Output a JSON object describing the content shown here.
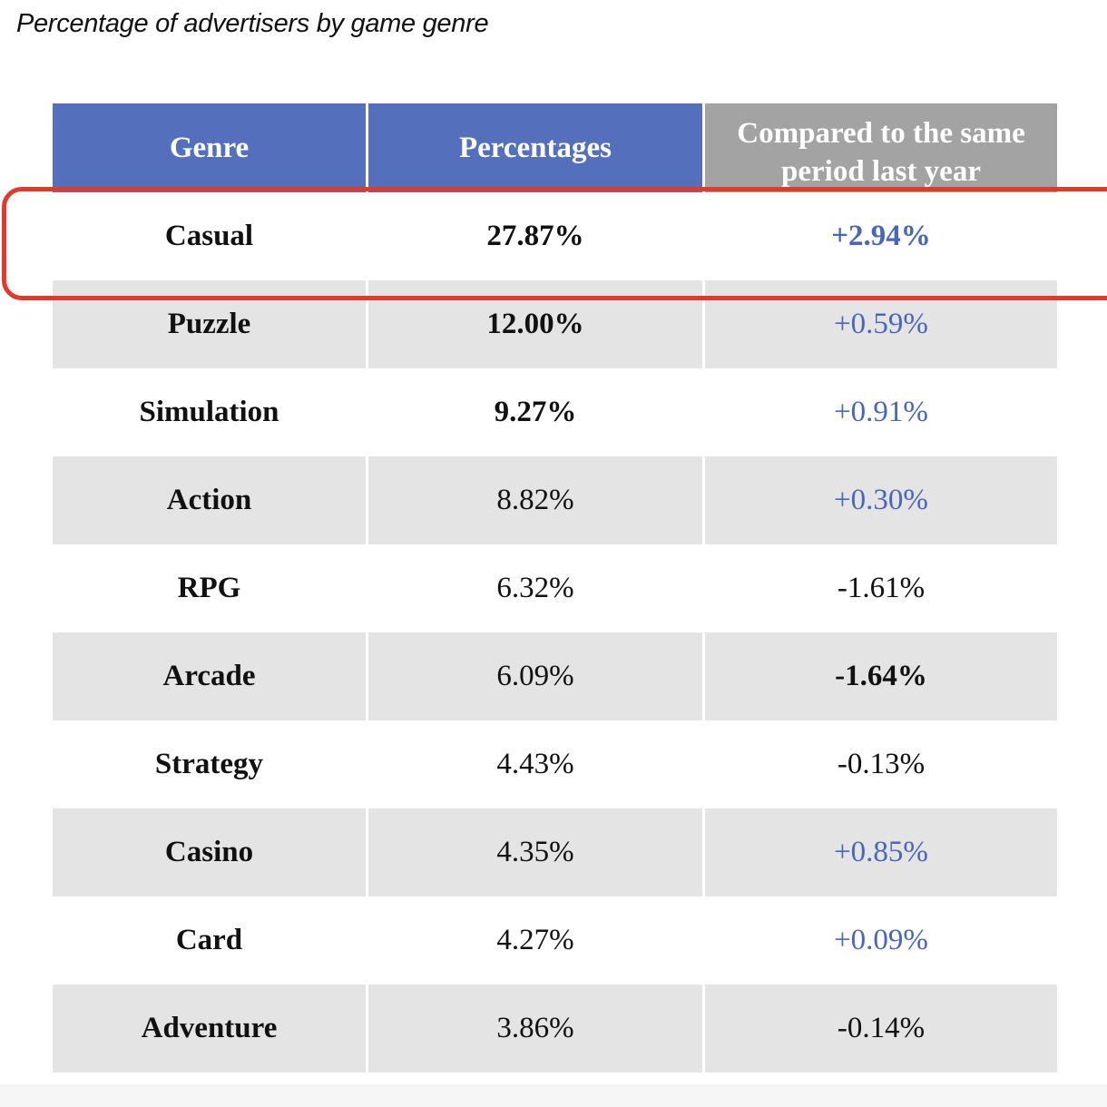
{
  "title": "Percentage of advertisers by game genre",
  "table": {
    "headers": [
      "Genre",
      "Percentages",
      "Compared to the same period last year"
    ],
    "rows": [
      {
        "genre": "Casual",
        "pct": "27.87%",
        "change": "+2.94%"
      },
      {
        "genre": "Puzzle",
        "pct": "12.00%",
        "change": "+0.59%"
      },
      {
        "genre": "Simulation",
        "pct": "9.27%",
        "change": "+0.91%"
      },
      {
        "genre": "Action",
        "pct": "8.82%",
        "change": "+0.30%"
      },
      {
        "genre": "RPG",
        "pct": "6.32%",
        "change": "-1.61%"
      },
      {
        "genre": "Arcade",
        "pct": "6.09%",
        "change": "-1.64%"
      },
      {
        "genre": "Strategy",
        "pct": "4.43%",
        "change": "-0.13%"
      },
      {
        "genre": "Casino",
        "pct": "4.35%",
        "change": "+0.85%"
      },
      {
        "genre": "Card",
        "pct": "4.27%",
        "change": "+0.09%"
      },
      {
        "genre": "Adventure",
        "pct": "3.86%",
        "change": "-0.14%"
      }
    ]
  },
  "colors": {
    "header_blue": "#5470bd",
    "header_gray": "#a3a3a3",
    "positive_text": "#4a66b7",
    "highlight_border": "#e03a2e",
    "shaded_row": "#e4e4e4"
  }
}
